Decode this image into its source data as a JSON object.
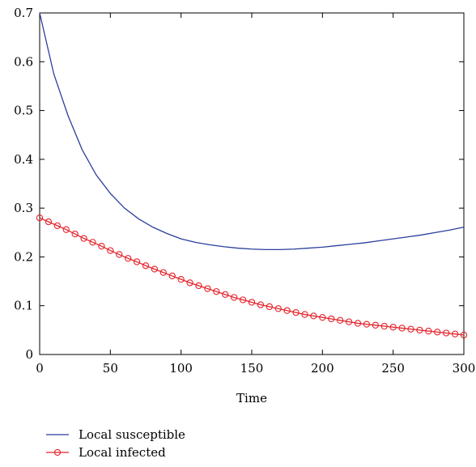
{
  "chart_data": {
    "type": "line",
    "title": "",
    "xlabel": "Time",
    "ylabel": "",
    "xlim": [
      0,
      300
    ],
    "ylim": [
      0,
      0.7
    ],
    "x_ticks": [
      0,
      50,
      100,
      150,
      200,
      250,
      300
    ],
    "y_ticks": [
      0,
      0.1,
      0.2,
      0.3,
      0.4,
      0.5,
      0.6,
      0.7
    ],
    "x_tick_labels": [
      "0",
      "50",
      "100",
      "150",
      "200",
      "250",
      "300"
    ],
    "y_tick_labels": [
      "0",
      "0.1",
      "0.2",
      "0.3",
      "0.4",
      "0.5",
      "0.6",
      "0.7"
    ],
    "grid": false,
    "legend_position": "bottom-left outside",
    "series": [
      {
        "name": "Local susceptible",
        "color": "#2b3f9e",
        "marker": "none",
        "x": [
          0,
          10,
          20,
          30,
          40,
          50,
          60,
          70,
          80,
          90,
          100,
          110,
          120,
          130,
          140,
          150,
          160,
          170,
          180,
          190,
          200,
          210,
          220,
          230,
          240,
          250,
          260,
          270,
          280,
          290,
          300
        ],
        "y": [
          0.7,
          0.575,
          0.49,
          0.42,
          0.368,
          0.33,
          0.3,
          0.278,
          0.261,
          0.248,
          0.237,
          0.23,
          0.225,
          0.221,
          0.218,
          0.216,
          0.215,
          0.215,
          0.216,
          0.218,
          0.22,
          0.223,
          0.226,
          0.229,
          0.233,
          0.237,
          0.241,
          0.245,
          0.25,
          0.255,
          0.261
        ]
      },
      {
        "name": "Local infected",
        "color": "#e3232a",
        "marker": "circle",
        "x": [
          0,
          6.25,
          12.5,
          18.75,
          25,
          31.25,
          37.5,
          43.75,
          50,
          56.25,
          62.5,
          68.75,
          75,
          81.25,
          87.5,
          93.75,
          100,
          106.25,
          112.5,
          118.75,
          125,
          131.25,
          137.5,
          143.75,
          150,
          156.25,
          162.5,
          168.75,
          175,
          181.25,
          187.5,
          193.75,
          200,
          206.25,
          212.5,
          218.75,
          225,
          231.25,
          237.5,
          243.75,
          250,
          256.25,
          262.5,
          268.75,
          275,
          281.25,
          287.5,
          293.75,
          300
        ],
        "y": [
          0.28,
          0.272,
          0.264,
          0.256,
          0.247,
          0.238,
          0.23,
          0.222,
          0.213,
          0.205,
          0.197,
          0.19,
          0.182,
          0.175,
          0.168,
          0.161,
          0.154,
          0.147,
          0.141,
          0.135,
          0.129,
          0.123,
          0.117,
          0.112,
          0.107,
          0.102,
          0.098,
          0.094,
          0.09,
          0.086,
          0.082,
          0.079,
          0.076,
          0.073,
          0.07,
          0.067,
          0.064,
          0.062,
          0.06,
          0.058,
          0.056,
          0.054,
          0.052,
          0.05,
          0.048,
          0.046,
          0.044,
          0.042,
          0.04
        ]
      }
    ]
  }
}
